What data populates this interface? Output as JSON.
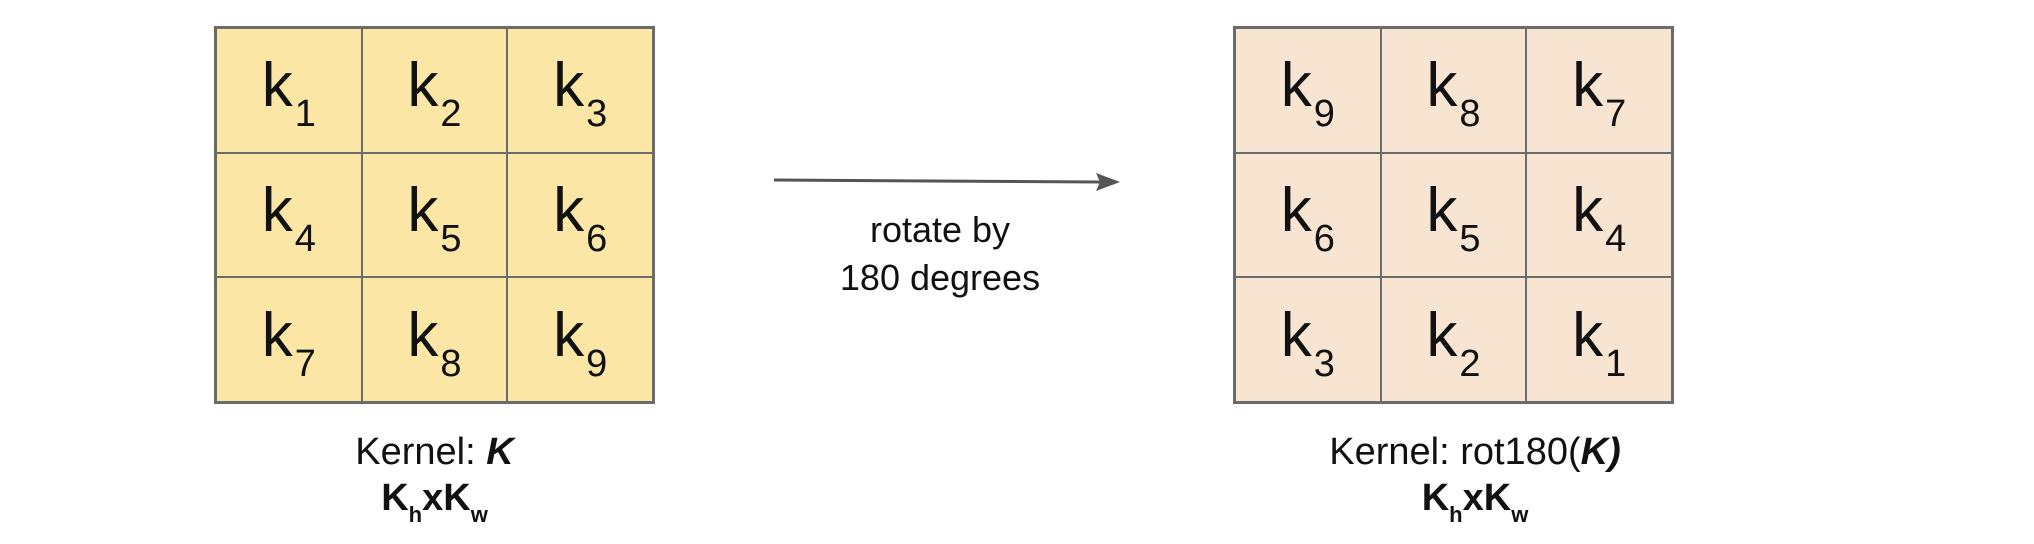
{
  "left_kernel": {
    "cells": [
      {
        "letter": "k",
        "sub": "1"
      },
      {
        "letter": "k",
        "sub": "2"
      },
      {
        "letter": "k",
        "sub": "3"
      },
      {
        "letter": "k",
        "sub": "4"
      },
      {
        "letter": "k",
        "sub": "5"
      },
      {
        "letter": "k",
        "sub": "6"
      },
      {
        "letter": "k",
        "sub": "7"
      },
      {
        "letter": "k",
        "sub": "8"
      },
      {
        "letter": "k",
        "sub": "9"
      }
    ],
    "fill_color": "#fbe6a6",
    "caption_prefix": "Kernel: ",
    "caption_symbol": "K",
    "caption_suffix": "",
    "dims": {
      "a": "K",
      "a_sub": "h",
      "x": "x",
      "b": "K",
      "b_sub": "w"
    }
  },
  "arrow": {
    "line1": "rotate by",
    "line2": "180 degrees",
    "color": "#555555"
  },
  "right_kernel": {
    "cells": [
      {
        "letter": "k",
        "sub": "9"
      },
      {
        "letter": "k",
        "sub": "8"
      },
      {
        "letter": "k",
        "sub": "7"
      },
      {
        "letter": "k",
        "sub": "6"
      },
      {
        "letter": "k",
        "sub": "5"
      },
      {
        "letter": "k",
        "sub": "4"
      },
      {
        "letter": "k",
        "sub": "3"
      },
      {
        "letter": "k",
        "sub": "2"
      },
      {
        "letter": "k",
        "sub": "1"
      }
    ],
    "fill_color": "#f8e5d1",
    "caption_prefix": "Kernel: rot180(",
    "caption_symbol": "K)",
    "caption_suffix": "",
    "dims": {
      "a": "K",
      "a_sub": "h",
      "x": "x",
      "b": "K",
      "b_sub": "w"
    }
  }
}
